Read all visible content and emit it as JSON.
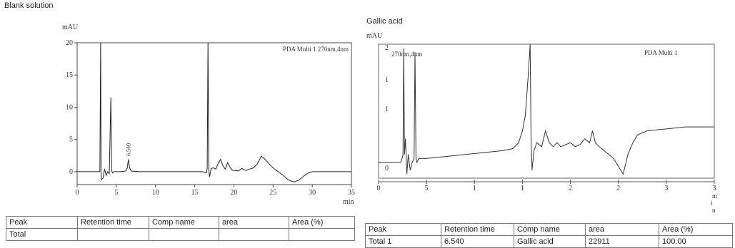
{
  "left_panel": {
    "title": "Blank solution",
    "table": {
      "headers": [
        "Peak",
        "Retention time",
        "Comp name",
        "area",
        "Area (%)"
      ],
      "rows": [
        [
          "Total",
          "",
          "",
          "",
          ""
        ]
      ]
    }
  },
  "right_panel": {
    "title": "Gallic acid",
    "table": {
      "headers": [
        "Peak",
        "Retention time",
        "Comp name",
        "area",
        "Area (%)"
      ],
      "rows": [
        [
          "Total 1",
          "6.540",
          "Gallic acid",
          "22911",
          "100.00"
        ]
      ]
    }
  },
  "chart_data": [
    {
      "type": "line",
      "ylabel": "mAU",
      "xlabel": "min",
      "annotation": "PDA Multi 1 270nm,4nm",
      "peak_label": "6.540",
      "xlim": [
        0,
        35
      ],
      "ylim": [
        -2,
        20
      ],
      "x_ticks": [
        "0",
        "5",
        "10",
        "15",
        "20",
        "25",
        "30",
        "35"
      ],
      "y_ticks": [
        "0",
        "5",
        "10",
        "15",
        "20"
      ],
      "series": [
        {
          "x": [
            0,
            2.9,
            3.0,
            3.05,
            3.1,
            3.3,
            3.5,
            3.7,
            3.9,
            4.1,
            4.3,
            4.4,
            4.5,
            4.7,
            5.5,
            6.2,
            6.4,
            6.54,
            6.7,
            6.9,
            8,
            10,
            12,
            14,
            16,
            16.5,
            16.6,
            16.7,
            16.8,
            16.9,
            17.1,
            17.4,
            17.7,
            18.0,
            18.3,
            18.6,
            18.9,
            19.2,
            19.5,
            19.8,
            20.2,
            20.6,
            21.0,
            21.5,
            22.0,
            22.5,
            23.0,
            23.5,
            23.9,
            24.3,
            24.8,
            25.3,
            26.0,
            27.0,
            27.7,
            28.3,
            29.0,
            29.5,
            30.0,
            31,
            33,
            35
          ],
          "y": [
            0,
            0,
            24,
            0,
            -1.2,
            -1.0,
            0.4,
            -0.6,
            0,
            -0.3,
            11.5,
            0.2,
            -0.2,
            0,
            0,
            0.1,
            0.6,
            1.9,
            0.6,
            0.1,
            0,
            0,
            0,
            0,
            0,
            -0.2,
            0.6,
            24,
            0.3,
            -0.8,
            0.5,
            0.6,
            0.4,
            1.3,
            1.9,
            0.9,
            0.4,
            1.4,
            0.7,
            0.2,
            0.2,
            0.1,
            0.5,
            0.2,
            0.4,
            0.6,
            1.2,
            2.4,
            2.0,
            1.5,
            0.8,
            0.3,
            -0.3,
            -1.3,
            -1.6,
            -1.3,
            -0.6,
            -0.2,
            0,
            0,
            0,
            0
          ]
        }
      ]
    },
    {
      "type": "line",
      "ylabel": "mAU",
      "xlabel": "min",
      "annotation_wavelength": "270nm,4nm",
      "annotation_detector": "PDA Multi 1",
      "x_tick_labels": [
        "0",
        "5",
        "1",
        "1",
        "2",
        "2",
        "3",
        "3"
      ],
      "x_unit": "min",
      "y_tick_labels": [
        "2",
        "1",
        "1",
        "0"
      ],
      "series": [
        {
          "x": [
            0,
            2.3,
            2.45,
            2.55,
            2.62,
            2.7,
            2.8,
            2.95,
            3.1,
            3.3,
            3.5,
            3.7,
            3.8,
            3.9,
            4.0,
            4.2,
            5,
            7,
            9,
            11,
            13,
            14,
            14.6,
            15.0,
            15.3,
            15.6,
            15.8,
            15.9,
            16.0,
            16.2,
            16.5,
            17.0,
            17.4,
            17.8,
            18.2,
            18.6,
            19.0,
            19.5,
            20.0,
            20.5,
            21.0,
            21.5,
            22.0,
            22.3,
            22.6,
            23.0,
            23.5,
            24.0,
            24.5,
            25.0,
            25.5,
            26.0,
            26.5,
            27.0,
            28,
            30,
            32,
            34,
            35
          ],
          "y": [
            0,
            0,
            0.1,
            0.2,
            2.9,
            0.2,
            0.6,
            -0.3,
            0.2,
            -0.2,
            0,
            0.1,
            2.8,
            0.1,
            0,
            0.1,
            0.1,
            0.15,
            0.2,
            0.25,
            0.3,
            0.35,
            0.5,
            0.8,
            1.2,
            2.2,
            3.0,
            0.6,
            -0.2,
            0.3,
            0.5,
            0.4,
            0.8,
            0.5,
            0.4,
            0.5,
            0.4,
            0.45,
            0.5,
            0.4,
            0.45,
            0.6,
            0.5,
            0.8,
            0.5,
            0.4,
            0.3,
            0.2,
            0.1,
            -0.1,
            -0.3,
            0.2,
            0.5,
            0.7,
            0.8,
            0.85,
            0.9,
            0.9,
            0.9
          ],
          "xlim": [
            0,
            35
          ],
          "ylim": [
            -0.4,
            3.0
          ]
        }
      ]
    }
  ]
}
